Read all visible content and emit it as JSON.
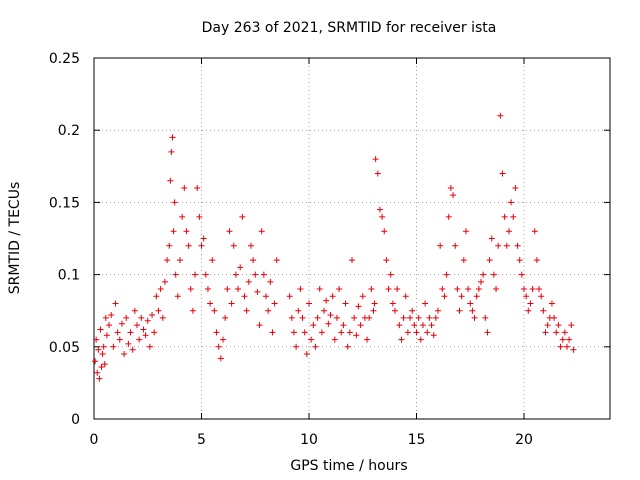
{
  "chart_data": {
    "type": "scatter",
    "title": "Day 263 of 2021, SRMTID for receiver ista",
    "xlabel": "GPS time / hours",
    "ylabel": "SRMTID / TECUs",
    "xlim": [
      0,
      24
    ],
    "ylim": [
      0,
      0.25
    ],
    "xticks": [
      0,
      5,
      10,
      15,
      20
    ],
    "xtick_labels": [
      "0",
      "5",
      "10",
      "15",
      "20"
    ],
    "yticks": [
      0,
      0.05,
      0.1,
      0.15,
      0.2,
      0.25
    ],
    "ytick_labels": [
      "0",
      "0.05",
      "0.1",
      "0.15",
      "0.2",
      "0.25"
    ],
    "grid": true,
    "marker": "+",
    "color": "#e8000b",
    "series": [
      {
        "name": "SRMTID",
        "x": [
          0.05,
          0.1,
          0.15,
          0.2,
          0.25,
          0.3,
          0.35,
          0.4,
          0.45,
          0.5,
          0.55,
          0.6,
          0.7,
          0.8,
          0.9,
          1.0,
          1.1,
          1.2,
          1.3,
          1.4,
          1.5,
          1.6,
          1.7,
          1.8,
          1.9,
          2.0,
          2.1,
          2.2,
          2.3,
          2.4,
          2.5,
          2.6,
          2.7,
          2.8,
          2.9,
          3.0,
          3.1,
          3.2,
          3.3,
          3.4,
          3.5,
          3.55,
          3.6,
          3.65,
          3.7,
          3.75,
          3.8,
          3.9,
          4.0,
          4.1,
          4.2,
          4.3,
          4.4,
          4.5,
          4.6,
          4.7,
          4.8,
          4.9,
          5.0,
          5.1,
          5.2,
          5.3,
          5.4,
          5.5,
          5.6,
          5.7,
          5.8,
          5.9,
          6.0,
          6.1,
          6.2,
          6.3,
          6.4,
          6.5,
          6.6,
          6.7,
          6.8,
          6.9,
          7.0,
          7.1,
          7.2,
          7.3,
          7.4,
          7.5,
          7.6,
          7.7,
          7.8,
          7.9,
          8.0,
          8.1,
          8.2,
          8.3,
          8.4,
          8.5,
          9.1,
          9.2,
          9.3,
          9.4,
          9.5,
          9.6,
          9.7,
          9.8,
          9.9,
          10.0,
          10.1,
          10.2,
          10.3,
          10.4,
          10.5,
          10.6,
          10.7,
          10.8,
          10.9,
          11.0,
          11.1,
          11.2,
          11.3,
          11.4,
          11.5,
          11.6,
          11.7,
          11.8,
          11.9,
          12.0,
          12.1,
          12.2,
          12.3,
          12.4,
          12.5,
          12.6,
          12.7,
          12.8,
          12.9,
          13.0,
          13.05,
          13.1,
          13.2,
          13.3,
          13.4,
          13.5,
          13.6,
          13.7,
          13.8,
          13.9,
          14.0,
          14.1,
          14.2,
          14.3,
          14.4,
          14.5,
          14.6,
          14.7,
          14.8,
          14.9,
          15.0,
          15.1,
          15.2,
          15.3,
          15.4,
          15.5,
          15.6,
          15.7,
          15.8,
          15.9,
          16.0,
          16.1,
          16.2,
          16.3,
          16.4,
          16.5,
          16.6,
          16.7,
          16.8,
          16.9,
          17.0,
          17.1,
          17.2,
          17.3,
          17.4,
          17.5,
          17.6,
          17.7,
          17.8,
          17.9,
          18.0,
          18.1,
          18.2,
          18.3,
          18.4,
          18.5,
          18.6,
          18.7,
          18.8,
          18.9,
          19.0,
          19.1,
          19.2,
          19.3,
          19.4,
          19.5,
          19.6,
          19.7,
          19.8,
          19.9,
          20.0,
          20.1,
          20.2,
          20.3,
          20.4,
          20.5,
          20.6,
          20.7,
          20.8,
          20.9,
          21.0,
          21.1,
          21.2,
          21.3,
          21.4,
          21.5,
          21.6,
          21.7,
          21.8,
          21.9,
          22.0,
          22.1,
          22.2,
          22.3
        ],
        "y": [
          0.04,
          0.055,
          0.032,
          0.048,
          0.028,
          0.062,
          0.036,
          0.045,
          0.05,
          0.038,
          0.07,
          0.058,
          0.065,
          0.072,
          0.05,
          0.08,
          0.06,
          0.055,
          0.066,
          0.045,
          0.07,
          0.052,
          0.06,
          0.048,
          0.075,
          0.065,
          0.055,
          0.07,
          0.062,
          0.058,
          0.068,
          0.05,
          0.072,
          0.06,
          0.085,
          0.075,
          0.09,
          0.07,
          0.095,
          0.11,
          0.12,
          0.165,
          0.185,
          0.195,
          0.13,
          0.15,
          0.1,
          0.085,
          0.11,
          0.14,
          0.16,
          0.13,
          0.12,
          0.09,
          0.075,
          0.1,
          0.16,
          0.14,
          0.12,
          0.125,
          0.1,
          0.09,
          0.08,
          0.11,
          0.075,
          0.06,
          0.05,
          0.042,
          0.055,
          0.07,
          0.09,
          0.13,
          0.08,
          0.12,
          0.1,
          0.09,
          0.105,
          0.14,
          0.085,
          0.075,
          0.095,
          0.12,
          0.11,
          0.1,
          0.088,
          0.065,
          0.13,
          0.1,
          0.085,
          0.075,
          0.095,
          0.06,
          0.08,
          0.11,
          0.085,
          0.07,
          0.06,
          0.05,
          0.075,
          0.09,
          0.07,
          0.06,
          0.045,
          0.08,
          0.055,
          0.065,
          0.05,
          0.07,
          0.09,
          0.06,
          0.075,
          0.082,
          0.066,
          0.072,
          0.085,
          0.055,
          0.07,
          0.09,
          0.06,
          0.065,
          0.08,
          0.05,
          0.06,
          0.11,
          0.07,
          0.058,
          0.078,
          0.065,
          0.085,
          0.07,
          0.055,
          0.07,
          0.09,
          0.075,
          0.08,
          0.18,
          0.17,
          0.145,
          0.14,
          0.13,
          0.11,
          0.09,
          0.1,
          0.08,
          0.075,
          0.09,
          0.065,
          0.055,
          0.07,
          0.085,
          0.06,
          0.07,
          0.075,
          0.065,
          0.06,
          0.07,
          0.055,
          0.065,
          0.08,
          0.06,
          0.07,
          0.065,
          0.058,
          0.07,
          0.075,
          0.12,
          0.09,
          0.085,
          0.1,
          0.14,
          0.16,
          0.155,
          0.12,
          0.09,
          0.075,
          0.085,
          0.11,
          0.13,
          0.09,
          0.08,
          0.075,
          0.07,
          0.085,
          0.09,
          0.095,
          0.1,
          0.07,
          0.06,
          0.11,
          0.125,
          0.1,
          0.09,
          0.12,
          0.21,
          0.17,
          0.14,
          0.12,
          0.13,
          0.15,
          0.14,
          0.16,
          0.12,
          0.11,
          0.1,
          0.09,
          0.085,
          0.075,
          0.08,
          0.09,
          0.13,
          0.11,
          0.09,
          0.085,
          0.075,
          0.06,
          0.065,
          0.07,
          0.08,
          0.07,
          0.06,
          0.065,
          0.05,
          0.055,
          0.06,
          0.05,
          0.055,
          0.065,
          0.048
        ]
      }
    ]
  }
}
